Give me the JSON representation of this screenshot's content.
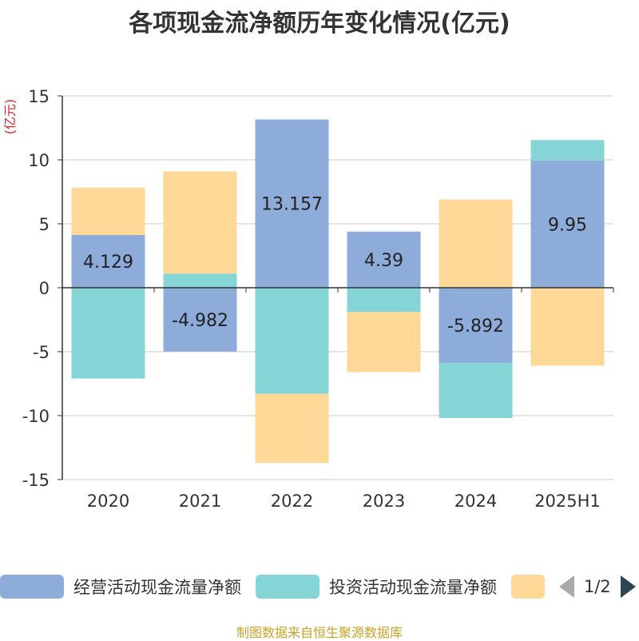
{
  "title": "各项现金流净额历年变化情况(亿元)",
  "source": "制图数据来自恒生聚源数据库",
  "legend_page": "1/2",
  "colors": {
    "operating": "#8eacda",
    "investing": "#86d5d6",
    "financing": "#fdd896",
    "axis": "#333333",
    "grid": "#cccccc",
    "unit": "#e0242b"
  },
  "chart_data": {
    "type": "bar",
    "stacked": true,
    "title": "各项现金流净额历年变化情况(亿元)",
    "ylabel": "(亿元)",
    "ylim": [
      -15,
      15
    ],
    "yticks": [
      15,
      10,
      5,
      0,
      -5,
      -10,
      -15
    ],
    "ytick_labels": [
      "15",
      "10",
      "5",
      "0",
      "-5",
      "-10",
      "-15"
    ],
    "categories": [
      "2020",
      "2021",
      "2022",
      "2023",
      "2024",
      "2025H1"
    ],
    "series": [
      {
        "name": "经营活动现金流量净额",
        "color": "#8eacda",
        "values": [
          4.129,
          -4.982,
          13.157,
          4.39,
          -5.892,
          9.95
        ],
        "data_labels": [
          "4.129",
          "-4.982",
          "13.157",
          "4.39",
          "-5.892",
          "9.95"
        ]
      },
      {
        "name": "投资活动现金流量净额",
        "color": "#86d5d6",
        "values": [
          -7.1,
          1.1,
          -8.3,
          -1.9,
          -4.3,
          1.6
        ]
      },
      {
        "name": "",
        "color": "#fdd896",
        "values": [
          3.7,
          8.0,
          -5.4,
          -4.7,
          6.9,
          -6.1
        ]
      }
    ],
    "grid": true,
    "legend_position": "bottom"
  }
}
